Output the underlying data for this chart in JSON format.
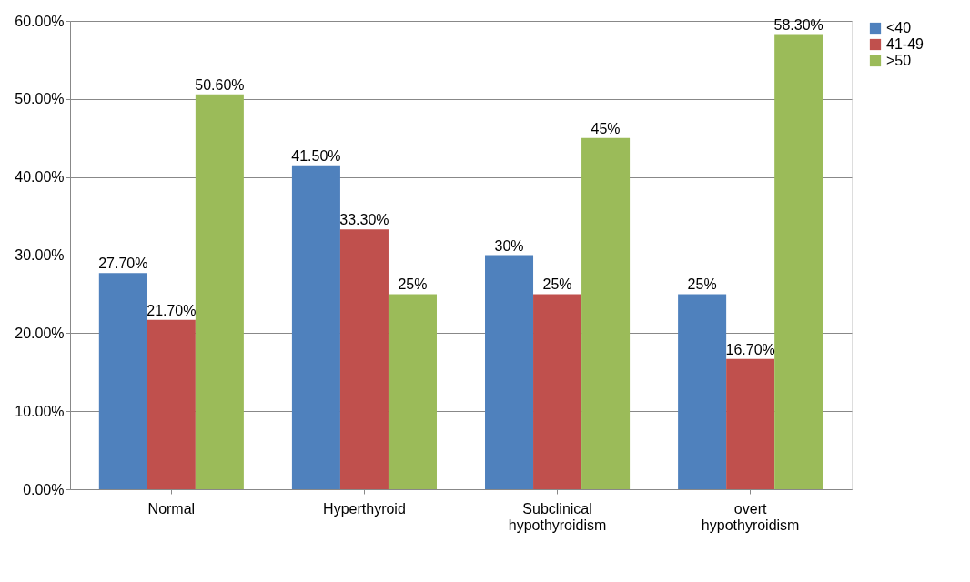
{
  "chart_data": {
    "type": "bar",
    "categories": [
      "Normal",
      "Hyperthyroid",
      "Subclinical hypothyroidism",
      "overt hypothyroidism"
    ],
    "series": [
      {
        "name": "<40",
        "color": "#4f81bd",
        "values": [
          27.7,
          41.5,
          30,
          25
        ],
        "value_labels": [
          "27.70%",
          "41.50%",
          "30%",
          "25%"
        ]
      },
      {
        "name": "41-49",
        "color": "#c0504d",
        "values": [
          21.7,
          33.3,
          25,
          16.7
        ],
        "value_labels": [
          "21.70%",
          "33.30%",
          "25%",
          "16.70%"
        ]
      },
      {
        "name": ">50",
        "color": "#9bbb59",
        "values": [
          50.6,
          25,
          45,
          58.3
        ],
        "value_labels": [
          "50.60%",
          "25%",
          "45%",
          "58.30%"
        ]
      }
    ],
    "ylim": [
      0,
      60
    ],
    "yticks": [
      {
        "value": 0,
        "label": "0.00%"
      },
      {
        "value": 10,
        "label": "10.00%"
      },
      {
        "value": 20,
        "label": "20.00%"
      },
      {
        "value": 30,
        "label": "30.00%"
      },
      {
        "value": 40,
        "label": "40.00%"
      },
      {
        "value": 50,
        "label": "50.00%"
      },
      {
        "value": 60,
        "label": "60.00%"
      }
    ],
    "grid": "y",
    "legend": "right"
  }
}
